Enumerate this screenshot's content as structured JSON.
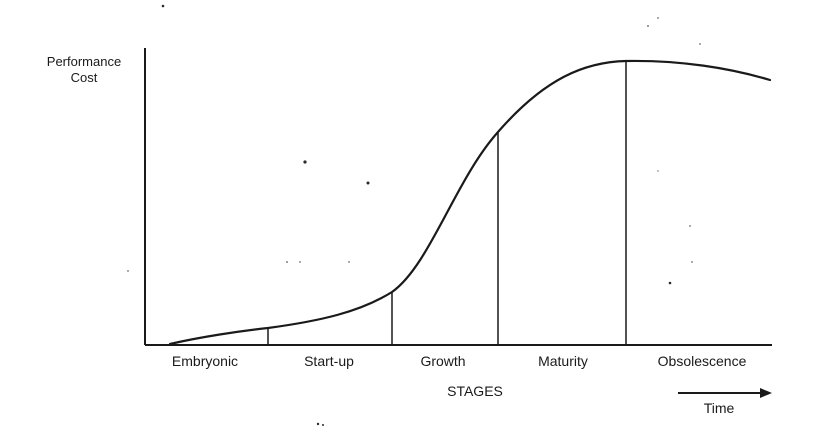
{
  "y_axis": {
    "label_lines": [
      "Performance",
      "Cost"
    ]
  },
  "stages": [
    "Embryonic",
    "Start-up",
    "Growth",
    "Maturity",
    "Obsolescence"
  ],
  "x_axis": {
    "label": "STAGES"
  },
  "time_arrow": {
    "label": "Time"
  },
  "colors": {
    "ink": "#1a1a1a",
    "background": "#ffffff"
  }
}
